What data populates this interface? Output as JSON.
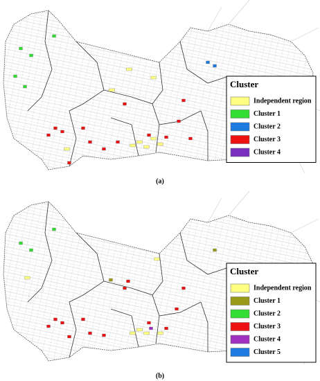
{
  "panels": [
    {
      "label": "(a)",
      "legend": {
        "title": "Cluster",
        "items": [
          {
            "name": "Independent region",
            "color": "#ffff80"
          },
          {
            "name": "Cluster 1",
            "color": "#33dd33"
          },
          {
            "name": "Cluster 2",
            "color": "#1e7be0"
          },
          {
            "name": "Cluster 3",
            "color": "#ee1111"
          },
          {
            "name": "Cluster 4",
            "color": "#7a2fbf"
          }
        ]
      }
    },
    {
      "label": "(b)",
      "legend": {
        "title": "Cluster",
        "items": [
          {
            "name": "Independent region",
            "color": "#ffff80"
          },
          {
            "name": "Cluster 1",
            "color": "#9a9a1a"
          },
          {
            "name": "Cluster 2",
            "color": "#33dd33"
          },
          {
            "name": "Cluster 3",
            "color": "#ee1111"
          },
          {
            "name": "Cluster 4",
            "color": "#a030c0"
          },
          {
            "name": "Cluster 5",
            "color": "#1e7be0"
          }
        ]
      }
    }
  ]
}
